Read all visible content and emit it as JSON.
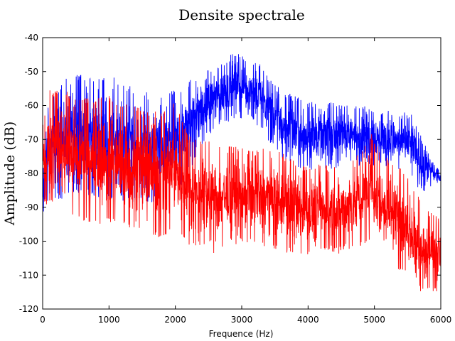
{
  "chart_data": {
    "type": "line",
    "title": "Densite spectrale",
    "xlabel": "Frequence (Hz)",
    "ylabel": "Amplitude (dB)",
    "xlim": [
      0,
      6000
    ],
    "ylim": [
      -120,
      -40
    ],
    "xticks": [
      0,
      1000,
      2000,
      3000,
      4000,
      5000,
      6000
    ],
    "yticks": [
      -40,
      -50,
      -60,
      -70,
      -80,
      -90,
      -100,
      -110,
      -120
    ],
    "grid": false,
    "legend": "none",
    "series": [
      {
        "color": "#0000ff",
        "style": "noisy-spectrum",
        "x": [
          0,
          100,
          200,
          400,
          600,
          800,
          1000,
          1200,
          1500,
          1800,
          2000,
          2100,
          2300,
          2500,
          2700,
          2900,
          3100,
          3300,
          3500,
          3700,
          3900,
          4100,
          4300,
          4500,
          4700,
          4900,
          5100,
          5300,
          5500,
          5600,
          5700,
          5800,
          5900,
          6000
        ],
        "upper": [
          -78,
          -56,
          -56,
          -50,
          -51,
          -51,
          -51,
          -53,
          -56,
          -56,
          -55,
          -55,
          -51,
          -49,
          -47,
          -44,
          -46,
          -48,
          -54,
          -56,
          -58,
          -59,
          -59,
          -58,
          -60,
          -60,
          -61,
          -62,
          -62,
          -63,
          -69,
          -72,
          -76,
          -80
        ],
        "lower": [
          -93,
          -87,
          -88,
          -87,
          -86,
          -87,
          -88,
          -88,
          -89,
          -88,
          -87,
          -84,
          -76,
          -69,
          -66,
          -64,
          -64,
          -67,
          -74,
          -78,
          -80,
          -79,
          -79,
          -78,
          -78,
          -78,
          -78,
          -79,
          -80,
          -82,
          -86,
          -85,
          -84,
          -84
        ]
      },
      {
        "color": "#ff0000",
        "style": "noisy-spectrum",
        "x": [
          0,
          100,
          200,
          400,
          600,
          800,
          1000,
          1200,
          1500,
          1800,
          2000,
          2200,
          2400,
          2600,
          2800,
          3000,
          3200,
          3400,
          3600,
          3800,
          4000,
          4200,
          4400,
          4600,
          4800,
          4950,
          5100,
          5300,
          5500,
          5600,
          5700,
          5800,
          5900,
          6000
        ],
        "upper": [
          -66,
          -55,
          -55,
          -56,
          -58,
          -57,
          -57,
          -59,
          -61,
          -62,
          -58,
          -69,
          -70,
          -71,
          -72,
          -72,
          -73,
          -72,
          -74,
          -76,
          -78,
          -77,
          -78,
          -76,
          -74,
          -68,
          -74,
          -77,
          -80,
          -85,
          -88,
          -91,
          -92,
          -93
        ],
        "lower": [
          -90,
          -89,
          -90,
          -93,
          -94,
          -95,
          -95,
          -96,
          -98,
          -99,
          -98,
          -101,
          -102,
          -104,
          -101,
          -101,
          -101,
          -102,
          -103,
          -104,
          -104,
          -103,
          -104,
          -103,
          -102,
          -100,
          -104,
          -107,
          -111,
          -114,
          -115,
          -117,
          -116,
          -113
        ]
      }
    ]
  }
}
